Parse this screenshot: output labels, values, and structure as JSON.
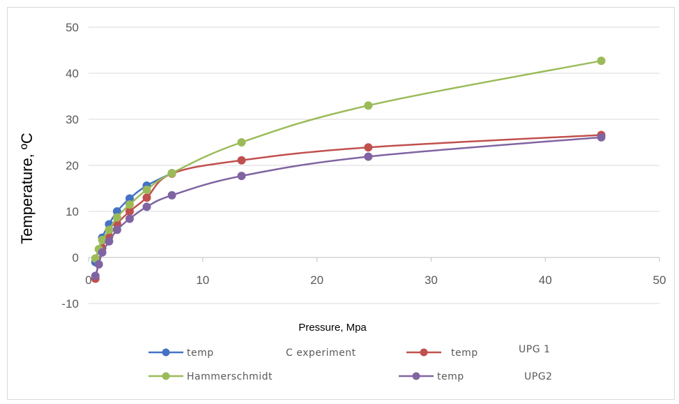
{
  "chart_data": {
    "type": "line",
    "xlabel": "Pressure, Mpa",
    "ylabel": "Temperature, ºC",
    "xlim": [
      0,
      50
    ],
    "ylim": [
      -10,
      50
    ],
    "xticks": [
      "0",
      "10",
      "20",
      "30",
      "40",
      "50"
    ],
    "yticks": [
      "-10",
      "0",
      "10",
      "20",
      "30",
      "40",
      "50"
    ],
    "grid": "horizontal",
    "legend_position": "bottom",
    "series": [
      {
        "name": "temp C experiment",
        "color": "#4472c4",
        "points": [
          [
            0.6,
            -1.0
          ],
          [
            1.2,
            4.3
          ],
          [
            1.8,
            7.2
          ],
          [
            2.5,
            10.0
          ],
          [
            3.6,
            12.8
          ],
          [
            5.1,
            15.6
          ],
          [
            7.3,
            18.3
          ]
        ]
      },
      {
        "name": "temp UPG 1",
        "color": "#c0504d",
        "points": [
          [
            0.6,
            -4.6
          ],
          [
            1.2,
            2.0
          ],
          [
            1.8,
            4.5
          ],
          [
            2.5,
            7.3
          ],
          [
            3.6,
            10.0
          ],
          [
            5.1,
            13.0
          ],
          [
            7.3,
            18.2
          ],
          [
            13.4,
            21.1
          ],
          [
            24.5,
            23.9
          ],
          [
            44.9,
            26.6
          ]
        ]
      },
      {
        "name": "Hammerschmidt",
        "color": "#9bbb59",
        "points": [
          [
            0.6,
            -0.2
          ],
          [
            0.9,
            1.8
          ],
          [
            1.2,
            3.8
          ],
          [
            1.8,
            6.0
          ],
          [
            2.5,
            8.7
          ],
          [
            3.6,
            11.5
          ],
          [
            5.1,
            14.7
          ],
          [
            7.3,
            18.3
          ],
          [
            13.4,
            25.0
          ],
          [
            24.5,
            33.0
          ],
          [
            44.9,
            42.7
          ]
        ]
      },
      {
        "name": "temp UPG2",
        "color": "#8064a2",
        "points": [
          [
            0.6,
            -4.0
          ],
          [
            0.9,
            -1.5
          ],
          [
            1.2,
            1.1
          ],
          [
            1.8,
            3.5
          ],
          [
            2.5,
            6.0
          ],
          [
            3.6,
            8.4
          ],
          [
            5.1,
            11.0
          ],
          [
            7.3,
            13.5
          ],
          [
            13.4,
            17.7
          ],
          [
            24.5,
            21.9
          ],
          [
            44.9,
            26.1
          ]
        ]
      }
    ],
    "legend": {
      "row1": {
        "a_word": "temp",
        "a_text": "C experiment",
        "b_word": "temp",
        "b_text": "UPG 1"
      },
      "row2": {
        "a_text": "Hammerschmidt",
        "b_word": "temp",
        "b_text": "UPG2"
      }
    }
  }
}
